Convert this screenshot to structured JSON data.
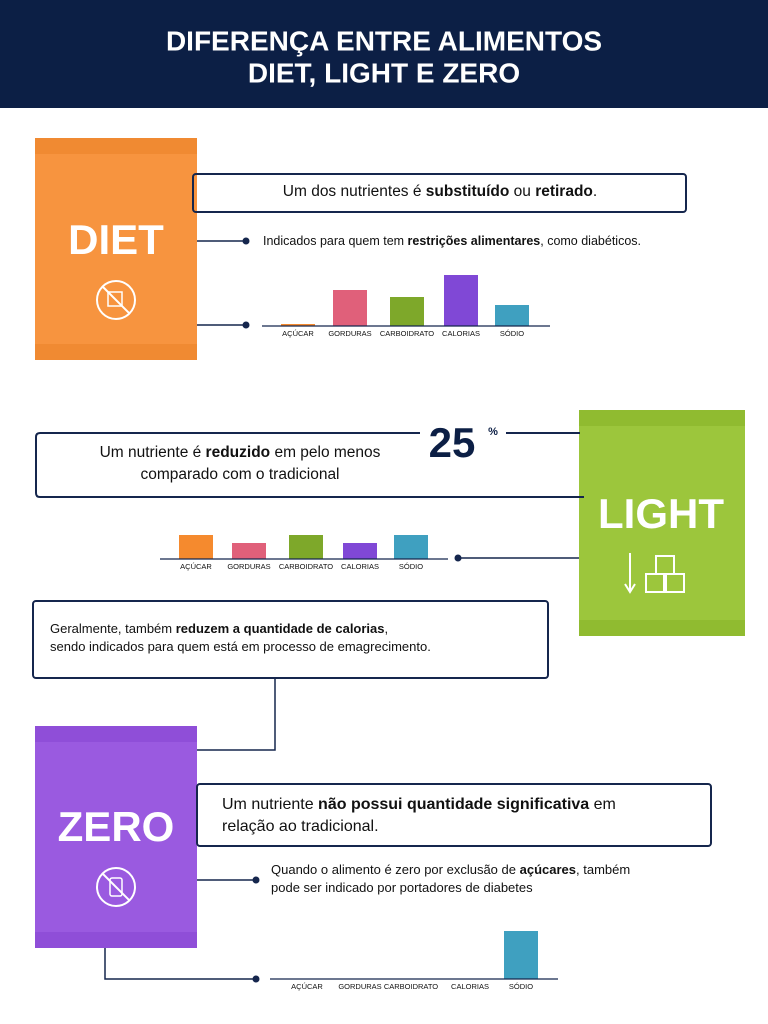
{
  "header": {
    "title_lines": [
      "DIFERENÇA ENTRE ALIMENTOS",
      "DIET, LIGHT E ZERO"
    ]
  },
  "sections": [
    {
      "name": "DIET",
      "color": "#f7943f",
      "box_lines": [
        [
          {
            "t": "Um dos nutrientes é "
          },
          {
            "t": "substituído",
            "b": true
          },
          {
            "t": " ou "
          },
          {
            "t": "retirado",
            "b": true
          },
          {
            "t": "."
          }
        ]
      ],
      "note_lines": [
        [
          {
            "t": "Indicados para quem tem "
          },
          {
            "t": "restrições alimentares",
            "b": true
          },
          {
            "t": ", como diabéticos."
          }
        ]
      ],
      "chart": {
        "type": "bar",
        "categories": [
          "AÇÚCAR",
          "GORDURAS",
          "CARBOIDRATO",
          "CALORIAS",
          "SÓDIO"
        ],
        "values": [
          2,
          36,
          29,
          51,
          21
        ],
        "colors": [
          "#f58a2e",
          "#e0607a",
          "#7ea82a",
          "#8048d6",
          "#3fa0c0"
        ]
      }
    },
    {
      "name": "LIGHT",
      "color": "#9cc63c",
      "box_lines": [
        [
          {
            "t": "Um nutriente é "
          },
          {
            "t": "reduzido",
            "b": true
          },
          {
            "t": " em pelo menos"
          }
        ],
        [
          {
            "t": "comparado com o tradicional"
          }
        ]
      ],
      "highlight_value": 25,
      "highlight_unit": "%",
      "note_lines": [
        [
          {
            "t": "Geralmente, também "
          },
          {
            "t": "reduzem a quantidade de calorias",
            "b": true
          },
          {
            "t": ","
          }
        ],
        [
          {
            "t": "sendo indicados para quem está em processo de emagrecimento."
          }
        ]
      ],
      "chart": {
        "type": "bar",
        "categories": [
          "AÇÚCAR",
          "GORDURAS",
          "CARBOIDRATO",
          "CALORIAS",
          "SÓDIO"
        ],
        "values": [
          24,
          16,
          24,
          16,
          24
        ],
        "colors": [
          "#f58a2e",
          "#e0607a",
          "#7ea82a",
          "#8048d6",
          "#3fa0c0"
        ]
      }
    },
    {
      "name": "ZERO",
      "color": "#9a5ae0",
      "box_lines": [
        [
          {
            "t": "Um nutriente "
          },
          {
            "t": "não possui quantidade significativa",
            "b": true
          },
          {
            "t": " em"
          }
        ],
        [
          {
            "t": "relação ao tradicional."
          }
        ]
      ],
      "note_lines": [
        [
          {
            "t": "Quando o alimento é zero por exclusão de "
          },
          {
            "t": "açúcares",
            "b": true
          },
          {
            "t": ", também"
          }
        ],
        [
          {
            "t": "pode ser indicado por portadores de diabetes"
          }
        ]
      ],
      "chart": {
        "type": "bar",
        "categories": [
          "AÇÚCAR",
          "GORDURAS",
          "CARBOIDRATO",
          "CALORIAS",
          "SÓDIO"
        ],
        "values": [
          0,
          0,
          0,
          0,
          48
        ],
        "colors": [
          "#f58a2e",
          "#e0607a",
          "#7ea82a",
          "#8048d6",
          "#3fa0c0"
        ]
      }
    }
  ]
}
